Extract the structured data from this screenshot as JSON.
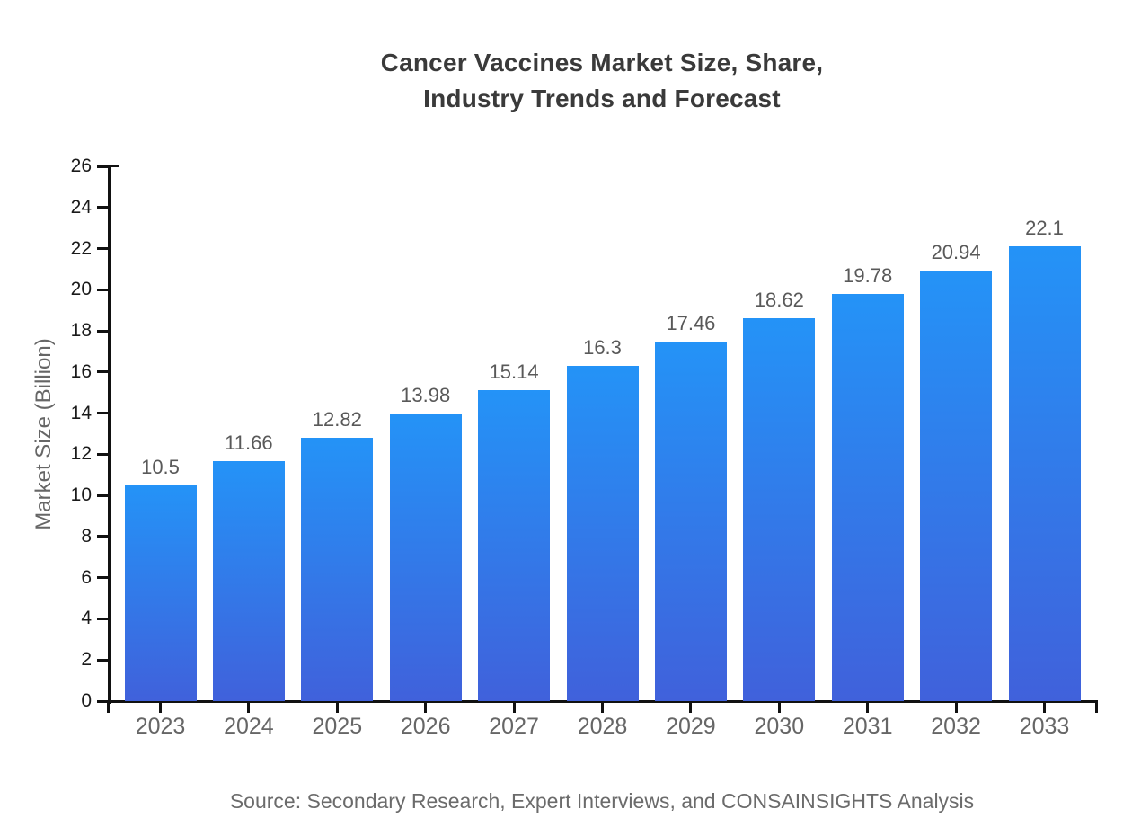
{
  "title": "Cancer Vaccines Market Size, Share,\nIndustry Trends and Forecast",
  "source_note": "Source: Secondary Research, Expert Interviews, and CONSAINSIGHTS Analysis",
  "chart_data": {
    "type": "bar",
    "title": "Cancer Vaccines Market Size, Share, Industry Trends and Forecast",
    "categories": [
      "2023",
      "2024",
      "2025",
      "2026",
      "2027",
      "2028",
      "2029",
      "2030",
      "2031",
      "2032",
      "2033"
    ],
    "values": [
      10.5,
      11.66,
      12.82,
      13.98,
      15.14,
      16.3,
      17.46,
      18.62,
      19.78,
      20.94,
      22.1
    ],
    "value_labels": [
      "10.5",
      "11.66",
      "12.82",
      "13.98",
      "15.14",
      "16.3",
      "17.46",
      "18.62",
      "19.78",
      "20.94",
      "22.1"
    ],
    "xlabel": "",
    "ylabel": "Market Size (Billion)",
    "ylim": [
      0,
      26
    ],
    "y_ticks": [
      0,
      2,
      4,
      6,
      8,
      10,
      12,
      14,
      16,
      18,
      20,
      22,
      24,
      26
    ],
    "grid": false,
    "legend": false,
    "bar_gradient_top": "#2493F7",
    "bar_gradient_bottom": "#4061DB",
    "axis_color": "#111111",
    "y_tick_label_color": "#1a1a1a",
    "x_tick_label_color": "#666666",
    "value_label_color": "#595959",
    "title_color": "#3a3a3a",
    "source_color": "#6b6b6b"
  }
}
